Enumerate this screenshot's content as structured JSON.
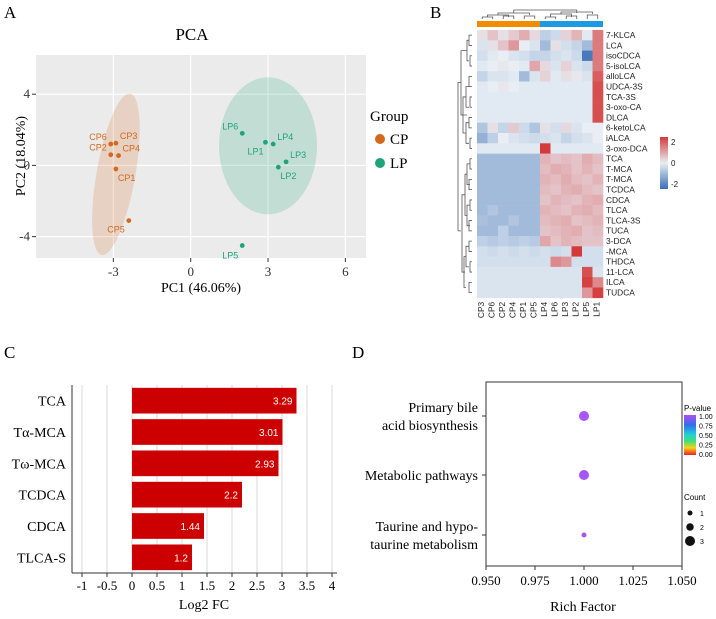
{
  "panel_letters": [
    "A",
    "B",
    "C",
    "D"
  ],
  "chart_data": [
    {
      "panel": "A",
      "type": "scatter",
      "title": "PCA",
      "xlabel": "PC1 (46.06%)",
      "ylabel": "PC2 (18.04%)",
      "xlim": [
        -6,
        6.8
      ],
      "ylim": [
        -5.2,
        6.2
      ],
      "xticks": [
        -3,
        0,
        3,
        6
      ],
      "yticks": [
        -4,
        0,
        4
      ],
      "xtick_labels": [
        "-3",
        "0",
        "3",
        "6"
      ],
      "ytick_labels": [
        "-4",
        "0",
        "4"
      ],
      "legend": {
        "title": "Group",
        "placement": "right"
      },
      "series": [
        {
          "name": "CP",
          "color": "#D2691E",
          "points": [
            {
              "label": "CP6",
              "x": -3.1,
              "y": 1.2
            },
            {
              "label": "CP3",
              "x": -2.9,
              "y": 1.25
            },
            {
              "label": "CP4",
              "x": -2.8,
              "y": 0.55
            },
            {
              "label": "CP2",
              "x": -3.1,
              "y": 0.6
            },
            {
              "label": "CP1",
              "x": -2.9,
              "y": -0.2
            },
            {
              "label": "CP5",
              "x": -2.4,
              "y": -3.1
            }
          ],
          "ellipse": {
            "cx": -2.9,
            "cy": -0.5,
            "rx": 0.75,
            "ry": 4.6,
            "angle": 10
          }
        },
        {
          "name": "LP",
          "color": "#1FA37A",
          "points": [
            {
              "label": "LP6",
              "x": 2.0,
              "y": 1.8
            },
            {
              "label": "LP4",
              "x": 3.2,
              "y": 1.2
            },
            {
              "label": "LP1",
              "x": 2.9,
              "y": 1.3
            },
            {
              "label": "LP2",
              "x": 3.4,
              "y": -0.1
            },
            {
              "label": "LP3",
              "x": 3.7,
              "y": 0.2
            },
            {
              "label": "LP5",
              "x": 2.0,
              "y": -4.5
            }
          ],
          "ellipse": {
            "cx": 3.0,
            "cy": 1.1,
            "rx": 1.9,
            "ry": 3.85,
            "angle": 0
          }
        }
      ]
    },
    {
      "panel": "B",
      "type": "heatmap",
      "rows": [
        "7-KLCA",
        "LCA",
        "isoCDCA",
        "5-isoLCA",
        "alloLCA",
        "UDCA-3S",
        "TCA-3S",
        "3-oxo-CA",
        "DLCA",
        "6-ketoLCA",
        "iALCA",
        "3-oxo-DCA",
        "TCA",
        "T-MCA",
        "T-MCA",
        "TCDCA",
        "CDCA",
        "TLCA",
        "TLCA-3S",
        "TUCA",
        "3-DCA",
        "-MCA",
        "THDCA",
        "11-LCA",
        "ILCA",
        "TUDCA"
      ],
      "columns": [
        "CP3",
        "CP6",
        "CP2",
        "CP4",
        "CP1",
        "CP5",
        "LP4",
        "LP6",
        "LP3",
        "LP2",
        "LP5",
        "LP1"
      ],
      "column_groups": [
        {
          "name": "CP",
          "color": "#F08C00",
          "count": 6
        },
        {
          "name": "LP",
          "color": "#1E9BE0",
          "count": 6
        }
      ],
      "color_scale": {
        "low": "#3B6FB6",
        "mid": "#E8EEF4",
        "high": "#D43A3A",
        "ticks": [
          2,
          0,
          -2
        ],
        "tick_labels": [
          "2",
          "0",
          "-2"
        ]
      },
      "values": [
        [
          0.2,
          0.6,
          0.2,
          0.5,
          0.9,
          0.3,
          -0.6,
          -0.4,
          0.4,
          0.8,
          -0.1,
          1.6
        ],
        [
          -0.2,
          0.2,
          0.6,
          1.2,
          0.0,
          -0.2,
          -1.0,
          0.2,
          -0.3,
          -0.5,
          -1.0,
          1.6
        ],
        [
          -0.3,
          -0.1,
          0.0,
          -0.2,
          -0.3,
          -0.5,
          -0.5,
          -0.3,
          -0.2,
          -0.4,
          -2.3,
          1.6
        ],
        [
          -0.1,
          0.0,
          0.1,
          0.0,
          -0.1,
          1.0,
          0.3,
          -0.2,
          0.4,
          -0.2,
          -0.4,
          1.6
        ],
        [
          -0.5,
          -0.2,
          -0.2,
          -0.1,
          -1.0,
          -0.2,
          0.4,
          -0.1,
          0.2,
          0.1,
          -0.2,
          2.0
        ],
        [
          -0.1,
          0.0,
          0.1,
          0.0,
          -0.1,
          -0.1,
          -0.1,
          -0.1,
          -0.1,
          -0.1,
          -0.1,
          2.2
        ],
        [
          -0.1,
          -0.1,
          -0.1,
          -0.1,
          -0.1,
          -0.1,
          -0.1,
          -0.1,
          -0.1,
          -0.1,
          -0.1,
          2.2
        ],
        [
          -0.1,
          -0.1,
          -0.1,
          -0.1,
          -0.1,
          -0.1,
          -0.1,
          -0.1,
          -0.1,
          -0.1,
          -0.1,
          2.2
        ],
        [
          -0.1,
          -0.1,
          -0.1,
          -0.1,
          -0.1,
          -0.1,
          -0.1,
          -0.1,
          -0.1,
          -0.1,
          -0.1,
          2.2
        ],
        [
          -0.8,
          0.2,
          -0.5,
          0.5,
          -0.4,
          -0.8,
          0.2,
          -0.3,
          0.3,
          -0.2,
          0.0,
          0.0
        ],
        [
          -1.2,
          -0.6,
          0.0,
          -0.2,
          -0.3,
          -0.4,
          -0.3,
          -0.2,
          -0.5,
          -0.3,
          -0.2,
          0.0
        ],
        [
          -0.1,
          -0.1,
          -0.1,
          -0.1,
          -0.1,
          -0.1,
          2.6,
          -0.1,
          -0.1,
          -0.1,
          -0.1,
          -0.1
        ],
        [
          -1.0,
          -1.0,
          -1.0,
          -1.0,
          -1.0,
          -1.0,
          0.8,
          0.6,
          0.7,
          0.6,
          0.9,
          0.7
        ],
        [
          -1.0,
          -1.0,
          -1.0,
          -1.0,
          -1.0,
          -1.0,
          0.7,
          0.9,
          0.8,
          0.6,
          0.8,
          0.6
        ],
        [
          -1.0,
          -1.0,
          -1.0,
          -1.0,
          -1.0,
          -1.0,
          0.8,
          0.7,
          0.9,
          0.7,
          0.6,
          0.8
        ],
        [
          -1.0,
          -1.0,
          -1.0,
          -1.0,
          -1.0,
          -1.0,
          0.7,
          0.6,
          0.8,
          0.9,
          0.7,
          0.6
        ],
        [
          -1.0,
          -1.0,
          -1.0,
          -1.0,
          -1.0,
          -1.0,
          0.6,
          0.8,
          0.7,
          0.6,
          0.8,
          0.9
        ],
        [
          -1.0,
          -0.8,
          -1.0,
          -1.0,
          -1.0,
          -1.0,
          0.8,
          0.7,
          0.6,
          0.8,
          0.9,
          0.7
        ],
        [
          -0.9,
          -1.0,
          -1.0,
          -0.8,
          -1.0,
          -1.0,
          0.7,
          0.8,
          0.9,
          0.6,
          0.7,
          0.8
        ],
        [
          -1.0,
          -1.0,
          -0.6,
          -1.0,
          -1.0,
          -1.0,
          0.6,
          0.7,
          0.8,
          0.9,
          0.6,
          0.7
        ],
        [
          -0.6,
          -0.7,
          -0.6,
          -0.7,
          -0.6,
          -0.7,
          1.0,
          0.6,
          0.8,
          0.7,
          0.6,
          0.6
        ],
        [
          -0.3,
          -0.4,
          -0.3,
          -0.4,
          -0.3,
          -0.4,
          -0.3,
          -0.4,
          -0.3,
          2.6,
          -0.3,
          -0.3
        ],
        [
          -0.3,
          -0.3,
          -0.3,
          -0.3,
          -0.3,
          -0.3,
          -0.3,
          1.4,
          1.2,
          -0.3,
          -0.3,
          -0.3
        ],
        [
          -0.2,
          -0.2,
          -0.2,
          -0.2,
          -0.2,
          -0.2,
          -0.2,
          -0.2,
          -0.2,
          -0.2,
          2.2,
          -0.2
        ],
        [
          -0.2,
          -0.2,
          -0.2,
          -0.2,
          -0.2,
          -0.2,
          -0.2,
          -0.2,
          -0.2,
          -0.2,
          2.4,
          1.4
        ],
        [
          -0.2,
          -0.2,
          -0.2,
          -0.2,
          -0.2,
          -0.2,
          -0.2,
          -0.2,
          -0.2,
          -0.2,
          1.2,
          2.4
        ]
      ]
    },
    {
      "panel": "C",
      "type": "bar",
      "orientation": "horizontal",
      "xlabel": "Log2 FC",
      "xlim": [
        -1.2,
        4.1
      ],
      "xticks": [
        -1,
        -0.5,
        0,
        0.5,
        1,
        1.5,
        2,
        2.5,
        3,
        3.5,
        4
      ],
      "xtick_labels": [
        "-1",
        "-0.5",
        "0",
        "0.5",
        "1",
        "1.5",
        "2",
        "2.5",
        "3",
        "3.5",
        "4"
      ],
      "categories": [
        "TCA",
        "Tα-MCA",
        "Tω-MCA",
        "TCDCA",
        "CDCA",
        "TLCA-S"
      ],
      "values": [
        3.29,
        3.01,
        2.93,
        2.2,
        1.44,
        1.2
      ],
      "value_labels": [
        "3.29",
        "3.01",
        "2.93",
        "2.2",
        "1.44",
        "1.2"
      ],
      "bar_color": "#CC0000",
      "grid": true
    },
    {
      "panel": "D",
      "type": "scatter",
      "xlabel": "Rich  Factor",
      "xlim": [
        0.95,
        1.05
      ],
      "xticks": [
        0.95,
        0.975,
        1.0,
        1.025,
        1.05
      ],
      "xtick_labels": [
        "0.950",
        "0.975",
        "1.000",
        "1.025",
        "1.050"
      ],
      "categories": [
        "Primary bile acid biosynthesis",
        "Metabolic pathways",
        "Taurine and hypotaurine metabolism"
      ],
      "category_lines": [
        [
          "Primary bile",
          "acid biosynthesis"
        ],
        [
          "Metabolic pathways"
        ],
        [
          "Taurine and hypo-",
          "taurine metabolism"
        ]
      ],
      "points": [
        {
          "category": "Primary bile acid biosynthesis",
          "x": 1.0,
          "count": 3,
          "pvalue_color": "#A855F7"
        },
        {
          "category": "Metabolic pathways",
          "x": 1.0,
          "count": 3,
          "pvalue_color": "#A855F7"
        },
        {
          "category": "Taurine and hypotaurine metabolism",
          "x": 1.0,
          "count": 1,
          "pvalue_color": "#A855F7"
        }
      ],
      "color_legend": {
        "title": "P-value",
        "ticks": [
          "1.00",
          "0.75",
          "0.50",
          "0.25",
          "0.00"
        ]
      },
      "size_legend": {
        "title": "Count",
        "items": [
          "1",
          "2",
          "3"
        ]
      }
    }
  ]
}
